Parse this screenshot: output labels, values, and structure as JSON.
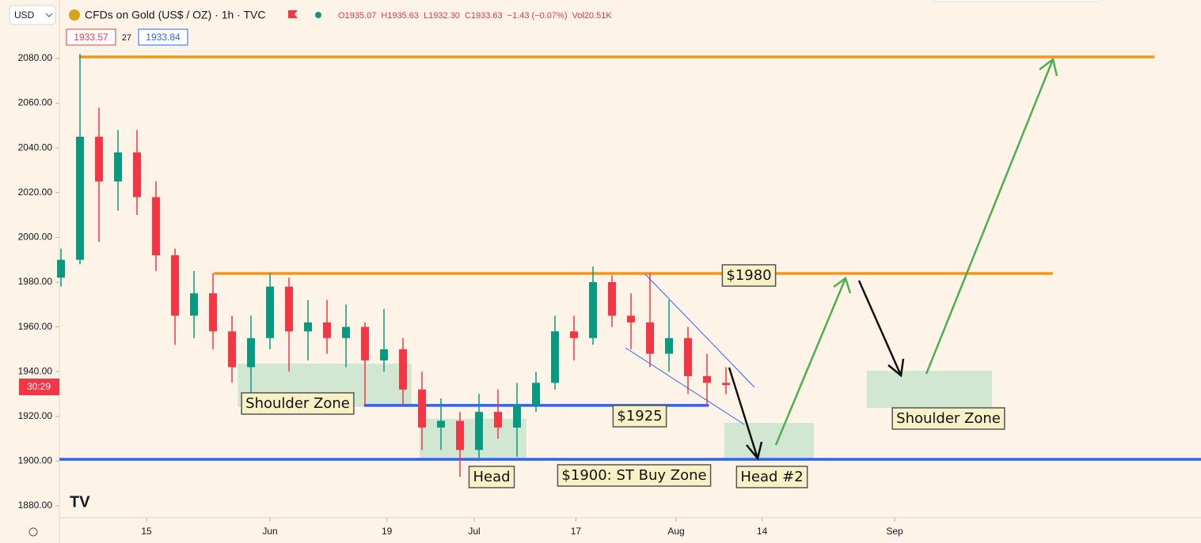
{
  "header": {
    "currency": "USD",
    "title": "CFDs on Gold (US$ / OZ) · 1h · TVC",
    "ohlc": [
      "O1935.07",
      "H1935.63",
      "L1932.30",
      "C1933.63",
      "−1.43 (−0.07%)",
      "Vol20.51K"
    ],
    "bid": "1933.57",
    "spread": "27",
    "ask": "1933.84",
    "countdown": "30:29"
  },
  "chart_data": {
    "type": "candlestick",
    "x": [
      1,
      3,
      5,
      7,
      9,
      11,
      13,
      15,
      17,
      19,
      21,
      23,
      25,
      27,
      29,
      31,
      33,
      35,
      37,
      39,
      41,
      43,
      45,
      47,
      49,
      51,
      53,
      55,
      57,
      59,
      61,
      63,
      65,
      67,
      69,
      71
    ],
    "open": [
      1982,
      1990,
      2045,
      2025,
      2038,
      2018,
      1992,
      1965,
      1975,
      1958,
      1942,
      1955,
      1978,
      1958,
      1962,
      1955,
      1960,
      1945,
      1950,
      1932,
      1915,
      1918,
      1905,
      1922,
      1915,
      1925,
      1935,
      1958,
      1955,
      1980,
      1965,
      1962,
      1948,
      1955,
      1938,
      1935
    ],
    "high": [
      1995,
      2082,
      2058,
      2048,
      2048,
      2025,
      1995,
      1985,
      1984,
      1965,
      1965,
      1984,
      1982,
      1972,
      1972,
      1970,
      1962,
      1968,
      1955,
      1940,
      1928,
      1922,
      1930,
      1932,
      1935,
      1940,
      1965,
      1965,
      1987,
      1983,
      1975,
      1984,
      1972,
      1960,
      1948,
      1942
    ],
    "low": [
      1978,
      1988,
      1998,
      2012,
      2010,
      1985,
      1952,
      1955,
      1950,
      1935,
      1930,
      1950,
      1940,
      1945,
      1948,
      1942,
      1925,
      1940,
      1925,
      1905,
      1905,
      1893,
      1900,
      1910,
      1902,
      1922,
      1932,
      1945,
      1952,
      1960,
      1950,
      1942,
      1940,
      1930,
      1925,
      1930
    ],
    "close": [
      1990,
      2045,
      2025,
      2038,
      2018,
      1992,
      1965,
      1975,
      1958,
      1942,
      1955,
      1978,
      1958,
      1962,
      1955,
      1960,
      1945,
      1950,
      1932,
      1915,
      1918,
      1905,
      1922,
      1915,
      1925,
      1935,
      1958,
      1955,
      1980,
      1965,
      1962,
      1948,
      1955,
      1938,
      1935,
      1934
    ],
    "up_color": "#089981",
    "down_color": "#f23645",
    "xlim": [
      0.83,
      121
    ],
    "ylim": [
      1874.7,
      2092
    ],
    "xticks": [
      {
        "value": 10,
        "label": "15"
      },
      {
        "value": 23,
        "label": "Jun"
      },
      {
        "value": 35.3,
        "label": "19"
      },
      {
        "value": 44.5,
        "label": "Jul"
      },
      {
        "value": 55.2,
        "label": "17"
      },
      {
        "value": 65.75,
        "label": "Aug"
      },
      {
        "value": 74.8,
        "label": "14"
      },
      {
        "value": 88.75,
        "label": "Sep"
      }
    ],
    "yticks": [
      {
        "value": 1880,
        "label": "1880.00"
      },
      {
        "value": 1900,
        "label": "1900.00"
      },
      {
        "value": 1920,
        "label": "1920.00"
      },
      {
        "value": 1940,
        "label": "1940.00"
      },
      {
        "value": 1960,
        "label": "1960.00"
      },
      {
        "value": 1980,
        "label": "1980.00"
      },
      {
        "value": 2000,
        "label": "2000.00"
      },
      {
        "value": 2020,
        "label": "2020.00"
      },
      {
        "value": 2040,
        "label": "2040.00"
      },
      {
        "value": 2060,
        "label": "2060.00"
      },
      {
        "value": 2080,
        "label": "2080.00"
      }
    ],
    "levels": [
      {
        "value": 2080.7,
        "x": [
          2.9,
          116.1
        ],
        "color": "#f7931a"
      },
      {
        "value": 1983.9,
        "x": [
          17.1,
          105.4
        ],
        "color": "#f7931a"
      },
      {
        "value": 1924.9,
        "x": [
          32.9,
          69.2
        ],
        "color": "#2962ff"
      },
      {
        "value": 1900.8,
        "x": [
          0.83,
          121
        ],
        "color": "#2962ff"
      }
    ],
    "zones": [
      {
        "y": [
          1924.2,
          1943.6
        ],
        "x": [
          19.6,
          37.9
        ]
      },
      {
        "y": [
          1901.2,
          1918.9
        ],
        "x": [
          38.75,
          50
        ]
      },
      {
        "y": [
          1901.2,
          1917.1
        ],
        "x": [
          70.8,
          80.25
        ]
      },
      {
        "y": [
          1923.8,
          1940.4
        ],
        "x": [
          85.8,
          99
        ]
      }
    ],
    "zone_color": "#c5e3cc",
    "annotations": [
      "Shoulder Zone",
      "Head",
      "$1900: ST Buy Zone",
      "$1925",
      "$1980",
      "Head #2",
      "Shoulder Zone"
    ]
  }
}
